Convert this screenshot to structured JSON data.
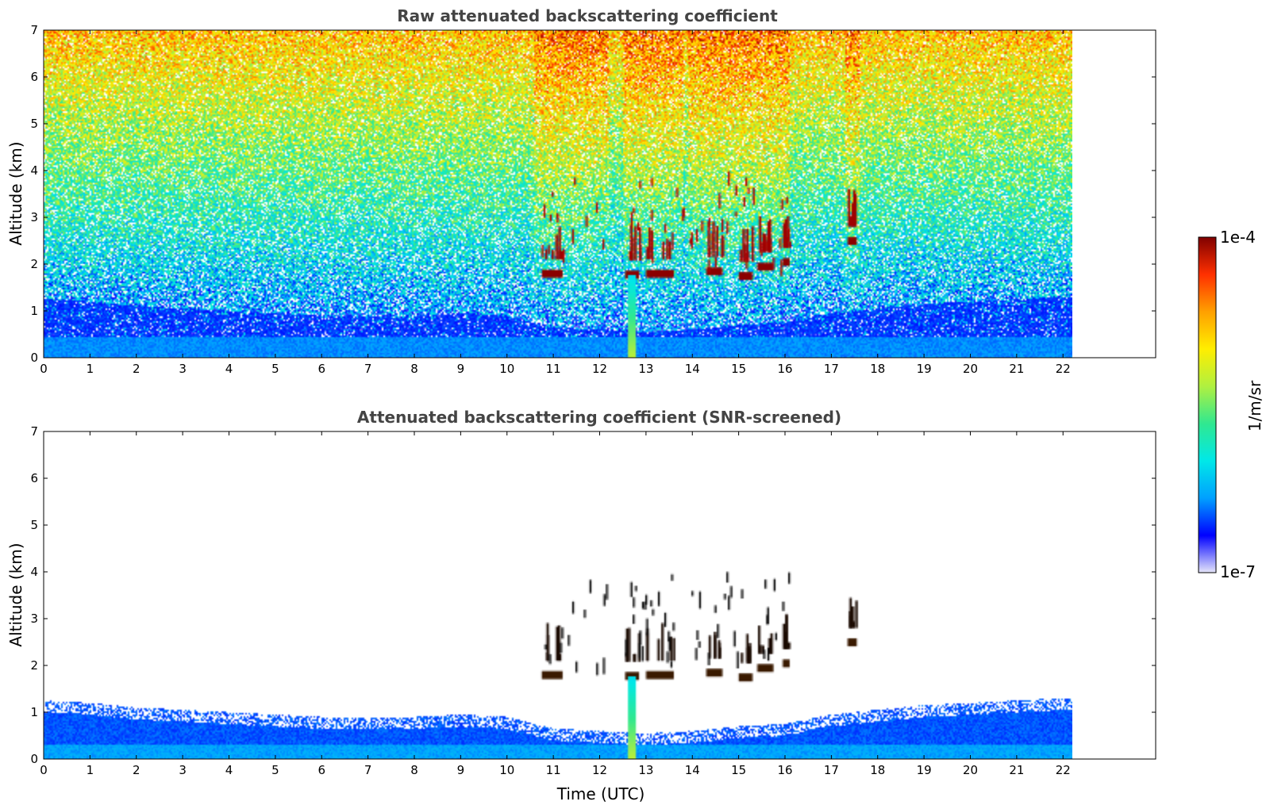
{
  "chart_data": [
    {
      "type": "heatmap",
      "title": "Raw attenuated backscattering coefficient",
      "xlabel": "",
      "ylabel": "Altitude (km)",
      "xlim": [
        0,
        24
      ],
      "ylim": [
        0,
        7
      ],
      "xticks": [
        0,
        1,
        2,
        3,
        4,
        5,
        6,
        7,
        8,
        9,
        10,
        11,
        12,
        13,
        14,
        15,
        16,
        17,
        18,
        19,
        20,
        21,
        22
      ],
      "yticks": [
        0,
        1,
        2,
        3,
        4,
        5,
        6,
        7
      ],
      "data_extent_x": [
        0,
        22.2
      ],
      "screened": false,
      "cloud_segments": [
        {
          "x0": 10.75,
          "x1": 11.2,
          "y": 1.8
        },
        {
          "x0": 12.55,
          "x1": 12.85,
          "y": 1.78
        },
        {
          "x0": 13.0,
          "x1": 13.6,
          "y": 1.8
        },
        {
          "x0": 14.3,
          "x1": 14.65,
          "y": 1.85
        },
        {
          "x0": 15.0,
          "x1": 15.3,
          "y": 1.75
        },
        {
          "x0": 15.4,
          "x1": 15.75,
          "y": 1.95
        },
        {
          "x0": 15.95,
          "x1": 16.1,
          "y": 2.05
        },
        {
          "x0": 17.35,
          "x1": 17.55,
          "y": 2.5
        }
      ],
      "precip_streak": {
        "x": 12.68,
        "y_top": 1.75
      }
    },
    {
      "type": "heatmap",
      "title": "Attenuated backscattering coefficient (SNR-screened)",
      "xlabel": "Time (UTC)",
      "ylabel": "Altitude (km)",
      "xlim": [
        0,
        24
      ],
      "ylim": [
        0,
        7
      ],
      "xticks": [
        0,
        1,
        2,
        3,
        4,
        5,
        6,
        7,
        8,
        9,
        10,
        11,
        12,
        13,
        14,
        15,
        16,
        17,
        18,
        19,
        20,
        21,
        22
      ],
      "yticks": [
        0,
        1,
        2,
        3,
        4,
        5,
        6,
        7
      ],
      "data_extent_x": [
        0,
        22.2
      ],
      "screened": true,
      "boundary_layer_top_km": [
        1.25,
        1.2,
        1.1,
        1.05,
        1.0,
        0.95,
        0.9,
        0.88,
        0.9,
        0.95,
        0.9,
        0.65,
        0.6,
        0.55,
        0.6,
        0.7,
        0.75,
        0.95,
        1.05,
        1.15,
        1.2,
        1.25,
        1.3
      ],
      "cloud_segments": [
        {
          "x0": 10.75,
          "x1": 11.2,
          "y": 1.8
        },
        {
          "x0": 12.55,
          "x1": 12.85,
          "y": 1.78
        },
        {
          "x0": 13.0,
          "x1": 13.6,
          "y": 1.8
        },
        {
          "x0": 14.3,
          "x1": 14.65,
          "y": 1.85
        },
        {
          "x0": 15.0,
          "x1": 15.3,
          "y": 1.75
        },
        {
          "x0": 15.4,
          "x1": 15.75,
          "y": 1.95
        },
        {
          "x0": 15.95,
          "x1": 16.1,
          "y": 2.05
        },
        {
          "x0": 17.35,
          "x1": 17.55,
          "y": 2.5
        }
      ],
      "precip_streak": {
        "x": 12.68,
        "y_top": 1.75
      }
    }
  ],
  "colorbar": {
    "label": "1/m/sr",
    "max_label": "1e-4",
    "min_label": "1e-7",
    "colormap": "jet",
    "colors": [
      "#e6e6fa",
      "#0000ff",
      "#00a0ff",
      "#00e8e8",
      "#30e890",
      "#b0f040",
      "#ffee00",
      "#ffa000",
      "#ff3000",
      "#800000"
    ]
  }
}
